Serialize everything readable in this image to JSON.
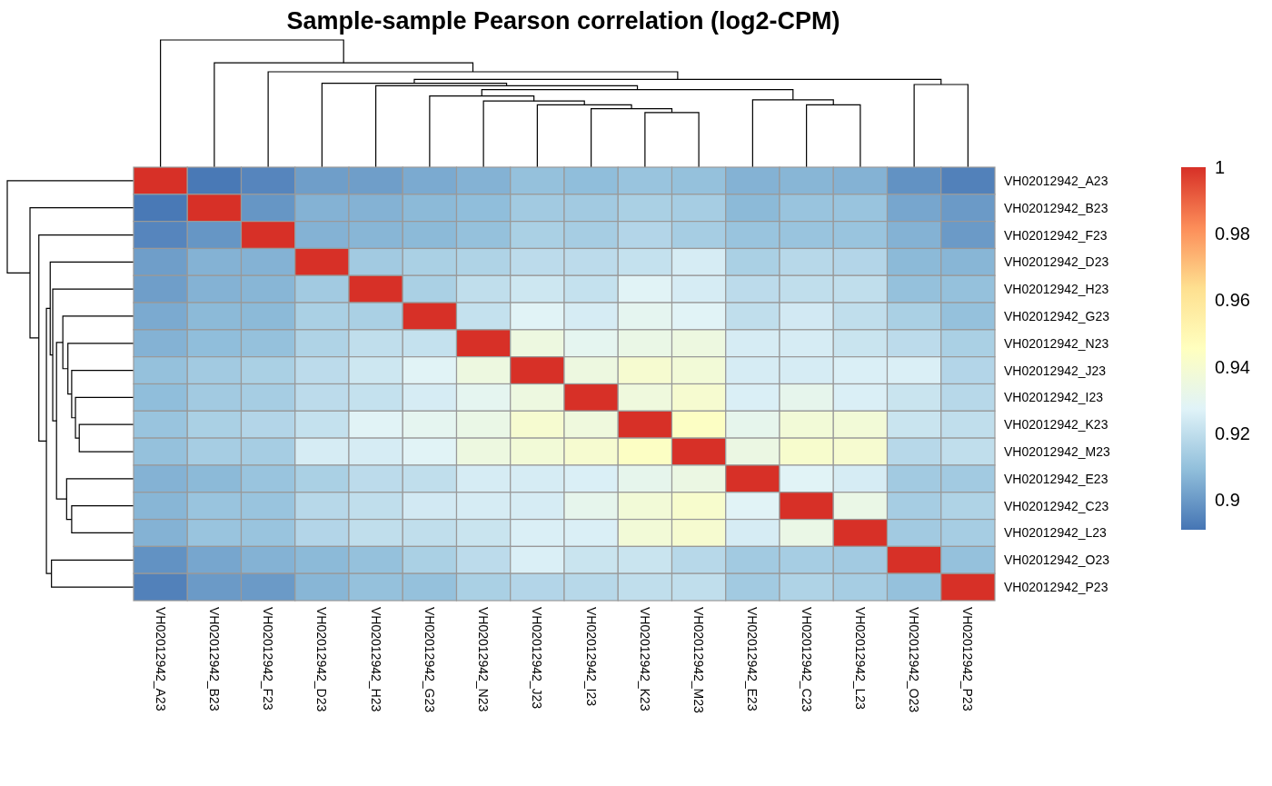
{
  "chart_data": {
    "type": "heatmap",
    "title": "Sample-sample Pearson correlation (log2-CPM)",
    "categories": [
      "VH02012942_A23",
      "VH02012942_B23",
      "VH02012942_F23",
      "VH02012942_D23",
      "VH02012942_H23",
      "VH02012942_G23",
      "VH02012942_N23",
      "VH02012942_J23",
      "VH02012942_I23",
      "VH02012942_K23",
      "VH02012942_M23",
      "VH02012942_E23",
      "VH02012942_C23",
      "VH02012942_L23",
      "VH02012942_O23",
      "VH02012942_P23"
    ],
    "y_categories": [
      "VH02012942_A23",
      "VH02012942_B23",
      "VH02012942_F23",
      "VH02012942_D23",
      "VH02012942_H23",
      "VH02012942_G23",
      "VH02012942_N23",
      "VH02012942_J23",
      "VH02012942_I23",
      "VH02012942_K23",
      "VH02012942_M23",
      "VH02012942_E23",
      "VH02012942_C23",
      "VH02012942_L23",
      "VH02012942_O23",
      "VH02012942_P23"
    ],
    "cells": [
      [
        1,
        0.892,
        0.895,
        0.901,
        0.901,
        0.904,
        0.906,
        0.91,
        0.909,
        0.911,
        0.91,
        0.906,
        0.907,
        0.906,
        0.898,
        0.894
      ],
      [
        0.892,
        1,
        0.899,
        0.906,
        0.906,
        0.908,
        0.909,
        0.913,
        0.913,
        0.915,
        0.914,
        0.908,
        0.911,
        0.911,
        0.903,
        0.9
      ],
      [
        0.895,
        0.899,
        1,
        0.906,
        0.907,
        0.908,
        0.91,
        0.915,
        0.914,
        0.917,
        0.914,
        0.911,
        0.911,
        0.911,
        0.906,
        0.9
      ],
      [
        0.901,
        0.906,
        0.906,
        1,
        0.913,
        0.915,
        0.916,
        0.919,
        0.919,
        0.921,
        0.925,
        0.915,
        0.918,
        0.917,
        0.908,
        0.907
      ],
      [
        0.901,
        0.906,
        0.907,
        0.913,
        1,
        0.915,
        0.92,
        0.923,
        0.921,
        0.928,
        0.925,
        0.919,
        0.92,
        0.92,
        0.91,
        0.91
      ],
      [
        0.904,
        0.908,
        0.908,
        0.915,
        0.915,
        1,
        0.921,
        0.928,
        0.925,
        0.93,
        0.928,
        0.92,
        0.924,
        0.92,
        0.915,
        0.91
      ],
      [
        0.906,
        0.909,
        0.91,
        0.916,
        0.92,
        0.921,
        1,
        0.935,
        0.93,
        0.933,
        0.935,
        0.925,
        0.925,
        0.922,
        0.919,
        0.915
      ],
      [
        0.91,
        0.913,
        0.915,
        0.919,
        0.923,
        0.928,
        0.935,
        1,
        0.935,
        0.94,
        0.938,
        0.925,
        0.925,
        0.926,
        0.926,
        0.917
      ],
      [
        0.909,
        0.913,
        0.914,
        0.919,
        0.921,
        0.925,
        0.93,
        0.935,
        1,
        0.936,
        0.94,
        0.926,
        0.931,
        0.926,
        0.922,
        0.918
      ],
      [
        0.911,
        0.915,
        0.917,
        0.921,
        0.928,
        0.93,
        0.933,
        0.94,
        0.936,
        1,
        0.944,
        0.931,
        0.938,
        0.938,
        0.922,
        0.92
      ],
      [
        0.91,
        0.914,
        0.914,
        0.925,
        0.925,
        0.928,
        0.935,
        0.938,
        0.94,
        0.944,
        1,
        0.934,
        0.941,
        0.94,
        0.918,
        0.92
      ],
      [
        0.906,
        0.908,
        0.911,
        0.915,
        0.919,
        0.92,
        0.925,
        0.925,
        0.926,
        0.931,
        0.934,
        1,
        0.928,
        0.925,
        0.913,
        0.913
      ],
      [
        0.907,
        0.911,
        0.911,
        0.918,
        0.92,
        0.924,
        0.925,
        0.925,
        0.931,
        0.938,
        0.941,
        0.928,
        1,
        0.933,
        0.914,
        0.916
      ],
      [
        0.906,
        0.911,
        0.911,
        0.917,
        0.92,
        0.92,
        0.922,
        0.926,
        0.926,
        0.938,
        0.94,
        0.925,
        0.933,
        1,
        0.913,
        0.914
      ],
      [
        0.898,
        0.903,
        0.906,
        0.908,
        0.91,
        0.915,
        0.919,
        0.926,
        0.922,
        0.922,
        0.918,
        0.913,
        0.914,
        0.913,
        1,
        0.91
      ],
      [
        0.894,
        0.9,
        0.9,
        0.907,
        0.91,
        0.91,
        0.915,
        0.917,
        0.918,
        0.92,
        0.92,
        0.913,
        0.916,
        0.914,
        0.91,
        1
      ]
    ],
    "clim": [
      0.891,
      1
    ],
    "cticks": [
      0.9,
      0.92,
      0.94,
      0.96,
      0.98,
      1
    ]
  }
}
